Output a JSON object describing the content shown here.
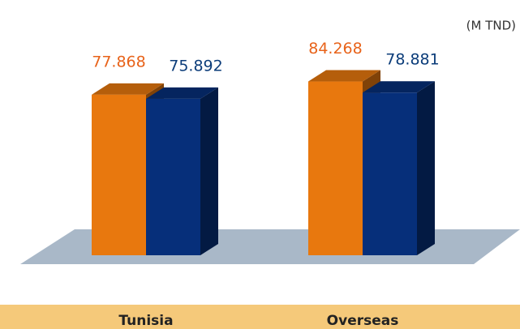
{
  "chart_data": {
    "type": "bar3d",
    "unit": "(M TND)",
    "categories": [
      "Tunisia",
      "Overseas"
    ],
    "series": [
      {
        "color": "#e8780e",
        "values": [
          77.868,
          84.268
        ]
      },
      {
        "color": "#062f7a",
        "values": [
          75.892,
          78.881
        ]
      }
    ]
  }
}
